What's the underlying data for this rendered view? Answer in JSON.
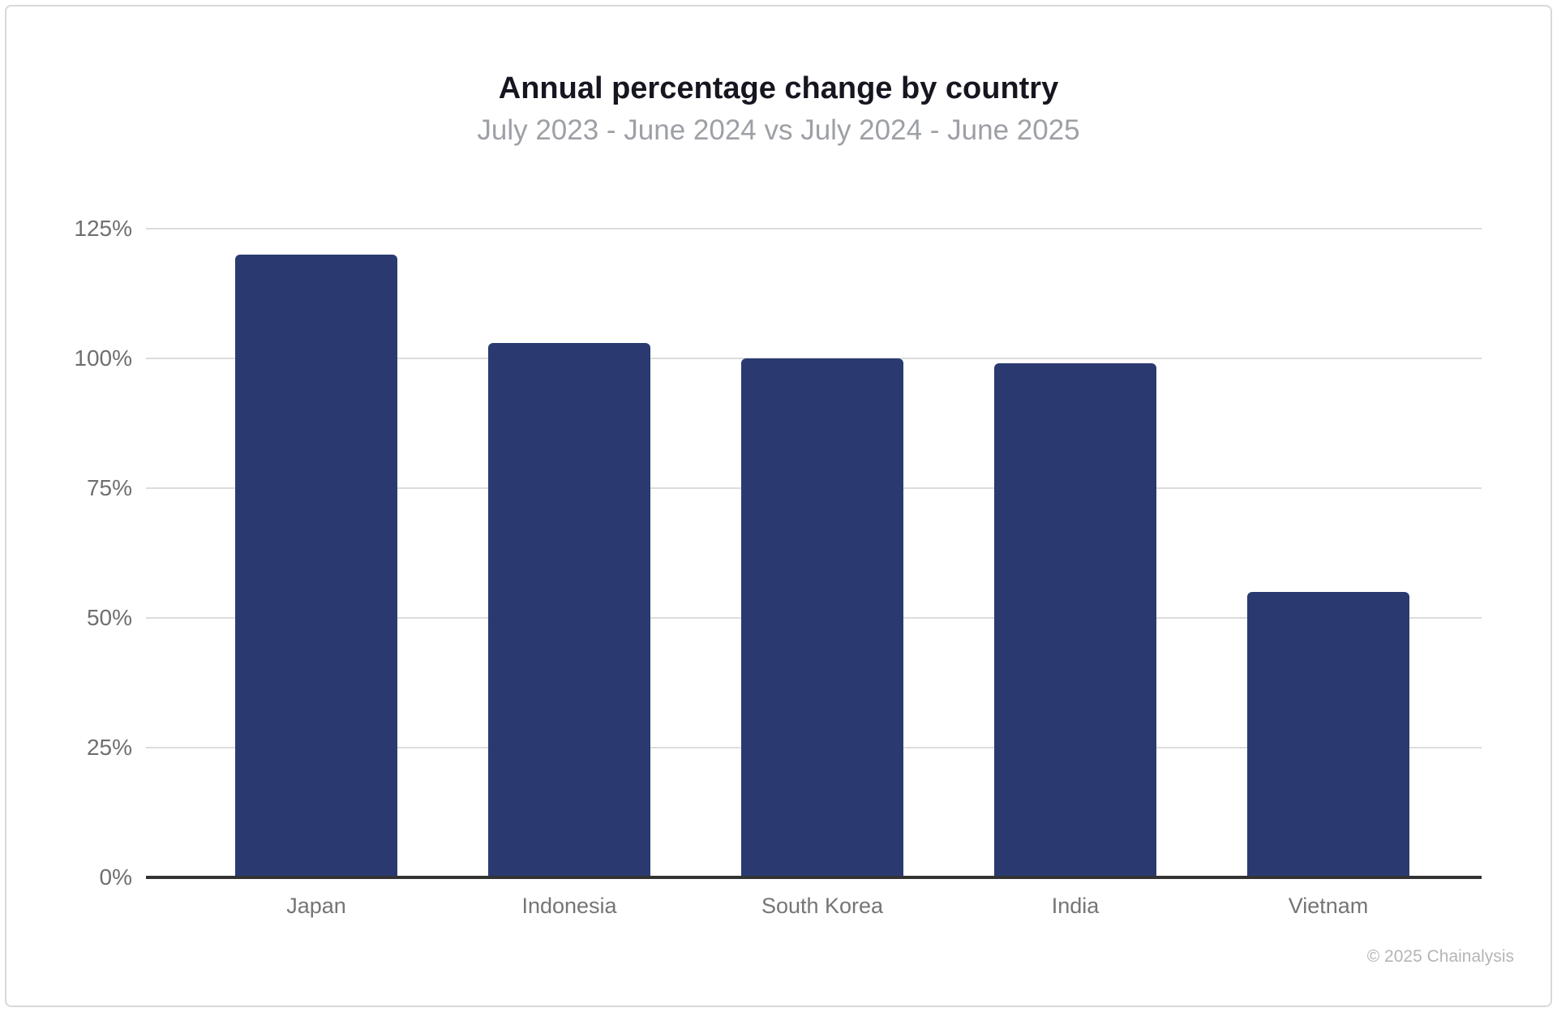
{
  "header": {
    "title": "Annual percentage change by country",
    "subtitle": "July 2023 - June 2024 vs July 2024 - June 2025"
  },
  "footer": {
    "copyright": "© 2025 Chainalysis"
  },
  "colors": {
    "bar": "#2a3a71",
    "gridline": "#dcdcdc",
    "axis_line": "#333333",
    "tick_label": "#6f6f6f",
    "category_label": "#757575",
    "title": "#161620",
    "subtitle": "#9da0a5",
    "copyright": "#b5b5b5",
    "frame_border": "#d8d8d8"
  },
  "chart_data": {
    "type": "bar",
    "title": "Annual percentage change by country",
    "subtitle": "July 2023 - June 2024 vs July 2024 - June 2025",
    "categories": [
      "Japan",
      "Indonesia",
      "South Korea",
      "India",
      "Vietnam"
    ],
    "values": [
      120,
      103,
      100,
      99,
      55
    ],
    "unit": "%",
    "xlabel": "",
    "ylabel": "",
    "ylim": [
      0,
      125
    ],
    "yticks": [
      0,
      25,
      50,
      75,
      100,
      125
    ],
    "ytick_labels": [
      "0%",
      "25%",
      "50%",
      "75%",
      "100%",
      "125%"
    ],
    "grid": "horizontal",
    "legend": "none",
    "annotation": "© 2025 Chainalysis"
  }
}
